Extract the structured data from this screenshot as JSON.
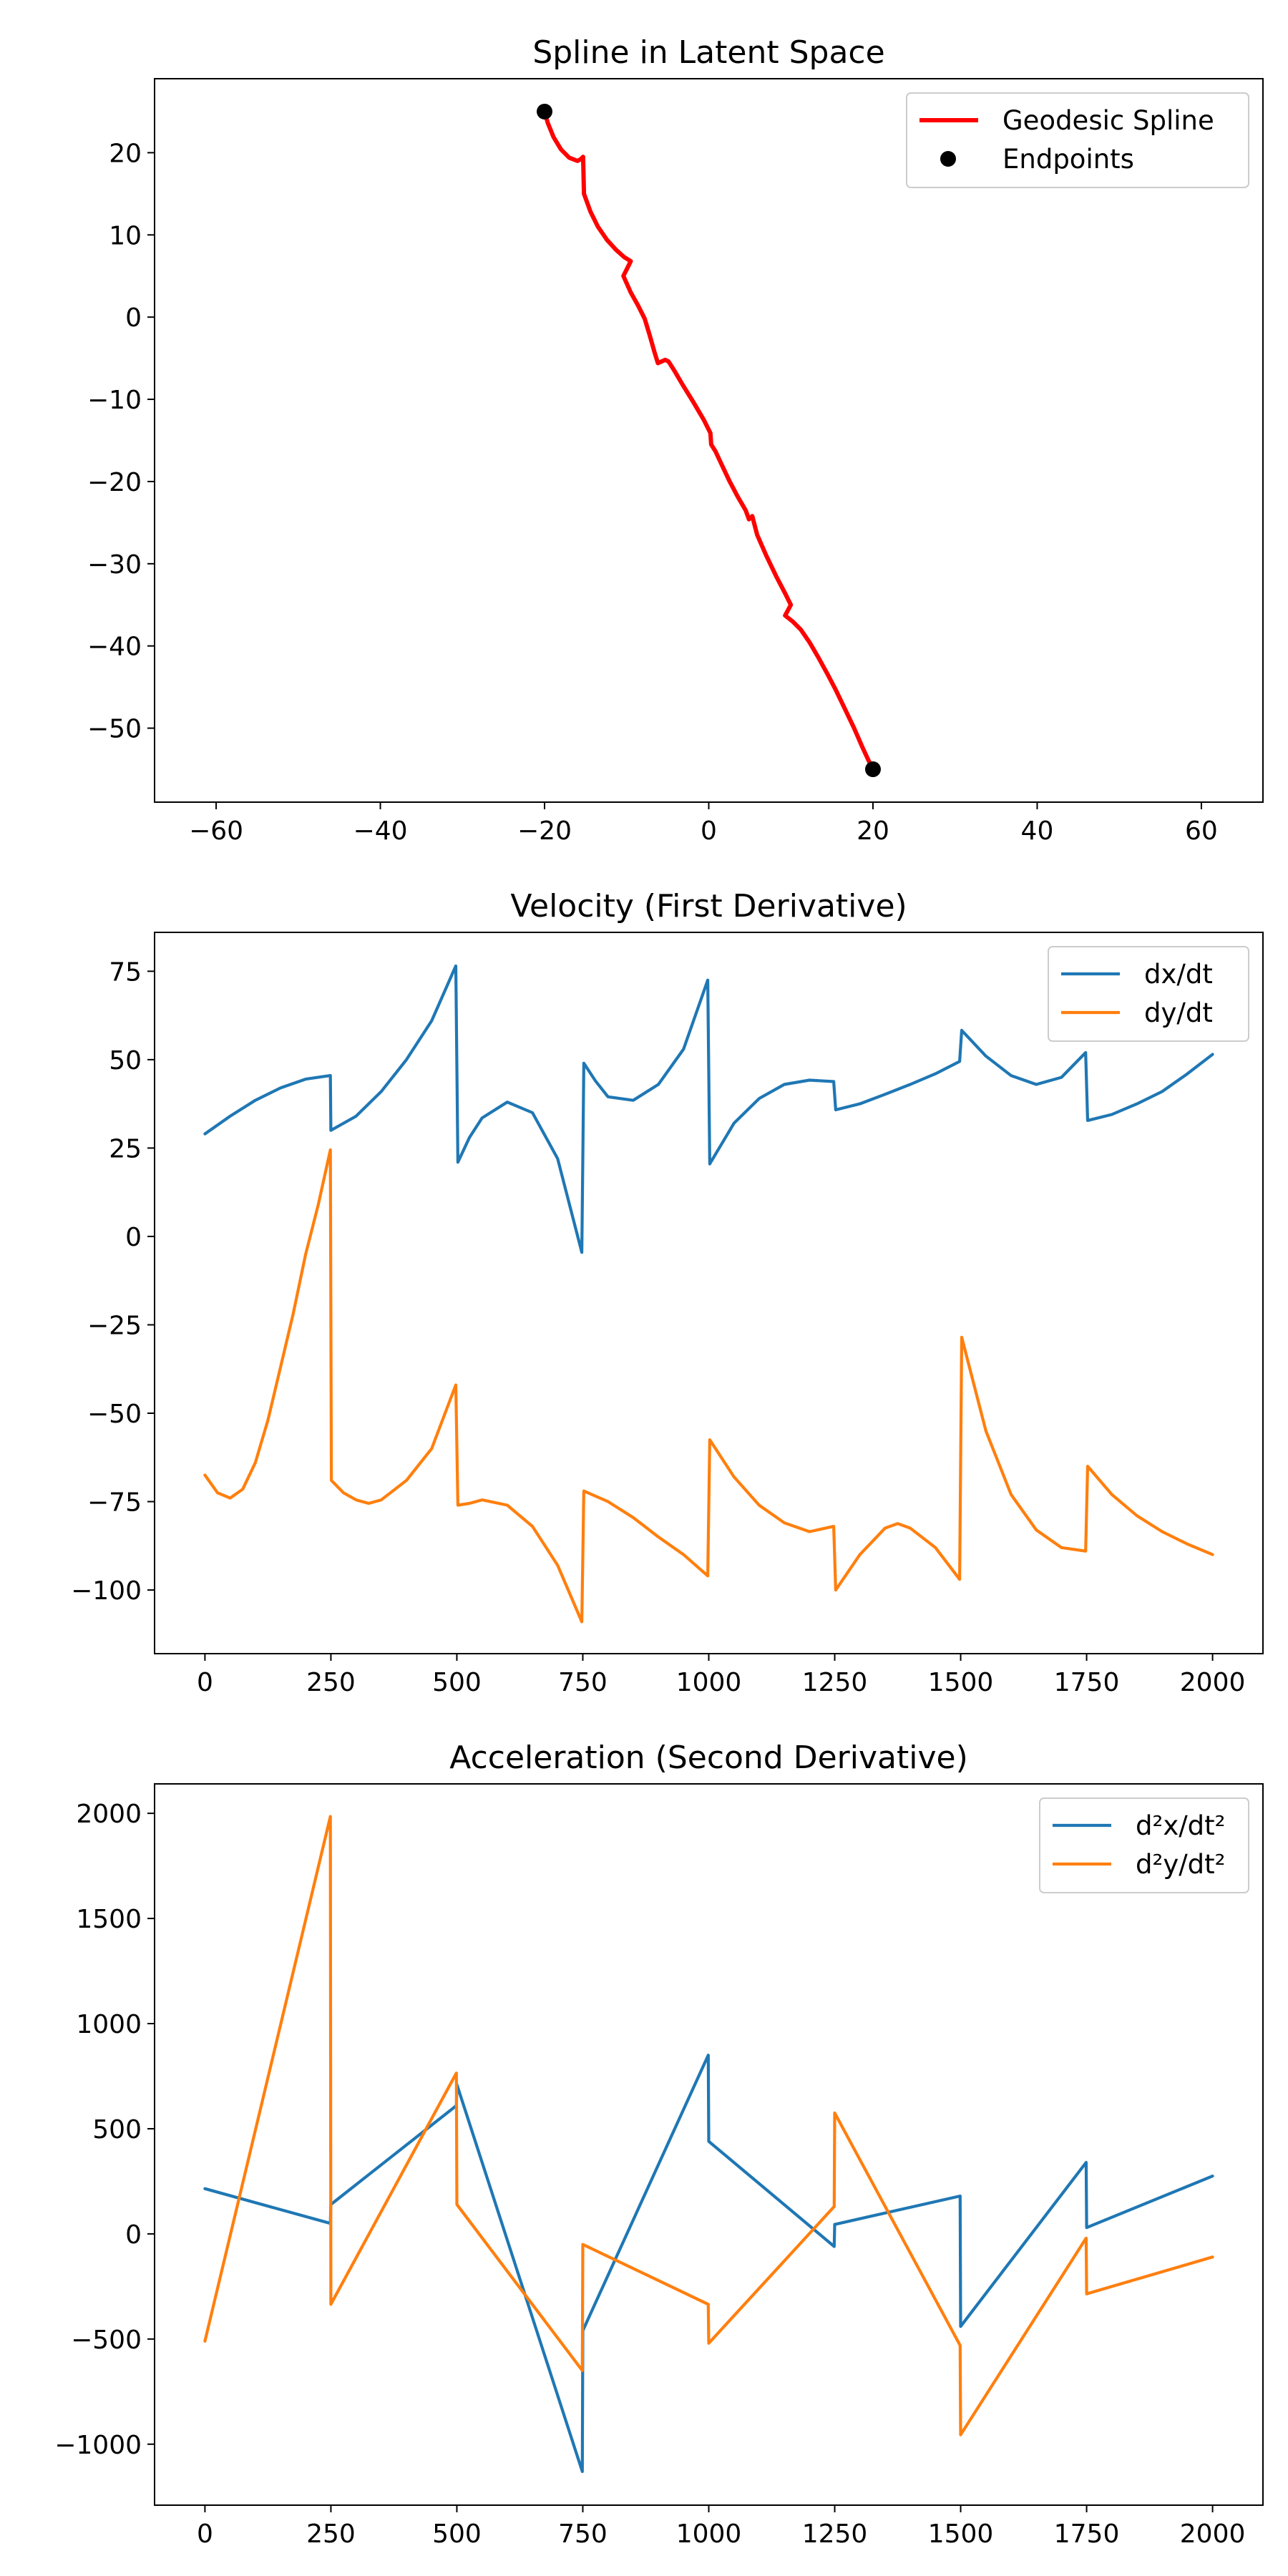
{
  "chart_data": [
    {
      "type": "line",
      "title": "Spline in Latent Space",
      "xlabel": "",
      "ylabel": "",
      "xlim": [
        -67.5,
        67.5
      ],
      "ylim": [
        -59,
        29
      ],
      "xticks": [
        -60,
        -40,
        -20,
        0,
        20,
        40,
        60
      ],
      "yticks": [
        -50,
        -40,
        -30,
        -20,
        -10,
        0,
        10,
        20
      ],
      "grid": false,
      "legend": "top-right",
      "series": [
        {
          "name": "Geodesic Spline",
          "kind": "line",
          "color": "#ff0000",
          "points": [
            [
              -20,
              25
            ],
            [
              -19.6,
              23.6
            ],
            [
              -18.9,
              21.9
            ],
            [
              -18.0,
              20.4
            ],
            [
              -17.0,
              19.4
            ],
            [
              -16.0,
              19.0
            ],
            [
              -15.6,
              19.2
            ],
            [
              -15.3,
              19.5
            ],
            [
              -15.2,
              15.0
            ],
            [
              -14.4,
              12.8
            ],
            [
              -13.5,
              11.0
            ],
            [
              -12.4,
              9.4
            ],
            [
              -11.3,
              8.2
            ],
            [
              -10.3,
              7.3
            ],
            [
              -9.5,
              6.8
            ],
            [
              -10.4,
              5.0
            ],
            [
              -9.5,
              3.0
            ],
            [
              -8.6,
              1.4
            ],
            [
              -7.8,
              -0.2
            ],
            [
              -7.2,
              -2.2
            ],
            [
              -6.6,
              -4.3
            ],
            [
              -6.2,
              -5.6
            ],
            [
              -5.3,
              -5.2
            ],
            [
              -4.9,
              -5.4
            ],
            [
              -4.2,
              -6.5
            ],
            [
              -3.2,
              -8.2
            ],
            [
              -1.9,
              -10.3
            ],
            [
              -0.6,
              -12.5
            ],
            [
              0.2,
              -14.1
            ],
            [
              0.3,
              -15.5
            ],
            [
              0.8,
              -16.3
            ],
            [
              1.6,
              -18.0
            ],
            [
              2.5,
              -19.9
            ],
            [
              3.5,
              -21.8
            ],
            [
              4.5,
              -23.5
            ],
            [
              4.9,
              -24.6
            ],
            [
              5.3,
              -24.2
            ],
            [
              5.9,
              -26.5
            ],
            [
              7.0,
              -29.0
            ],
            [
              8.2,
              -31.5
            ],
            [
              9.3,
              -33.6
            ],
            [
              10.0,
              -35.0
            ],
            [
              9.3,
              -36.3
            ],
            [
              10.2,
              -37.0
            ],
            [
              11.2,
              -38.0
            ],
            [
              12.3,
              -39.6
            ],
            [
              13.4,
              -41.5
            ],
            [
              14.5,
              -43.5
            ],
            [
              15.5,
              -45.4
            ],
            [
              16.6,
              -47.7
            ],
            [
              17.7,
              -50.0
            ],
            [
              18.7,
              -52.3
            ],
            [
              19.5,
              -54.0
            ],
            [
              20,
              -55
            ]
          ]
        },
        {
          "name": "Endpoints",
          "kind": "scatter",
          "color": "#000000",
          "points": [
            [
              -20,
              25
            ],
            [
              20,
              -55
            ]
          ]
        }
      ]
    },
    {
      "type": "line",
      "title": "Velocity (First Derivative)",
      "xlabel": "",
      "ylabel": "",
      "xlim": [
        -100,
        2100
      ],
      "ylim": [
        -118,
        86
      ],
      "xticks": [
        0,
        250,
        500,
        750,
        1000,
        1250,
        1500,
        1750,
        2000
      ],
      "yticks": [
        -100,
        -75,
        -50,
        -25,
        0,
        25,
        50,
        75
      ],
      "grid": false,
      "legend": "top-right",
      "series": [
        {
          "name": "dx/dt",
          "color": "#1f77b4",
          "points": [
            [
              0,
              29
            ],
            [
              50,
              34
            ],
            [
              100,
              38.5
            ],
            [
              150,
              42
            ],
            [
              200,
              44.5
            ],
            [
              249,
              45.5
            ],
            [
              250,
              30
            ],
            [
              300,
              34
            ],
            [
              350,
              41
            ],
            [
              400,
              50
            ],
            [
              450,
              61
            ],
            [
              498,
              76.5
            ],
            [
              502,
              21
            ],
            [
              525,
              28
            ],
            [
              550,
              33.5
            ],
            [
              600,
              38
            ],
            [
              650,
              35
            ],
            [
              700,
              22
            ],
            [
              748,
              -4.5
            ],
            [
              752,
              49
            ],
            [
              775,
              44
            ],
            [
              800,
              39.5
            ],
            [
              850,
              38.5
            ],
            [
              900,
              43
            ],
            [
              950,
              53
            ],
            [
              998,
              72.5
            ],
            [
              1002,
              20.5
            ],
            [
              1050,
              32
            ],
            [
              1100,
              39
            ],
            [
              1150,
              43
            ],
            [
              1200,
              44.2
            ],
            [
              1248,
              43.8
            ],
            [
              1252,
              35.8
            ],
            [
              1300,
              37.5
            ],
            [
              1350,
              40.2
            ],
            [
              1400,
              43
            ],
            [
              1450,
              46
            ],
            [
              1498,
              49.5
            ],
            [
              1502,
              58.3
            ],
            [
              1550,
              51
            ],
            [
              1600,
              45.5
            ],
            [
              1650,
              43
            ],
            [
              1700,
              45
            ],
            [
              1748,
              52
            ],
            [
              1752,
              32.8
            ],
            [
              1800,
              34.5
            ],
            [
              1850,
              37.5
            ],
            [
              1900,
              41
            ],
            [
              1950,
              46
            ],
            [
              2000,
              51.5
            ]
          ]
        },
        {
          "name": "dy/dt",
          "color": "#ff7f0e",
          "points": [
            [
              0,
              -67.5
            ],
            [
              25,
              -72.5
            ],
            [
              50,
              -74
            ],
            [
              75,
              -71.5
            ],
            [
              100,
              -64
            ],
            [
              125,
              -52
            ],
            [
              150,
              -37
            ],
            [
              175,
              -22
            ],
            [
              200,
              -5
            ],
            [
              225,
              9
            ],
            [
              249,
              24.5
            ],
            [
              251,
              -69
            ],
            [
              275,
              -72.5
            ],
            [
              300,
              -74.5
            ],
            [
              325,
              -75.5
            ],
            [
              350,
              -74.5
            ],
            [
              400,
              -69
            ],
            [
              450,
              -60
            ],
            [
              498,
              -42
            ],
            [
              502,
              -76
            ],
            [
              525,
              -75.5
            ],
            [
              550,
              -74.5
            ],
            [
              600,
              -76
            ],
            [
              650,
              -82
            ],
            [
              700,
              -93
            ],
            [
              748,
              -109
            ],
            [
              752,
              -72
            ],
            [
              800,
              -75
            ],
            [
              850,
              -79.5
            ],
            [
              900,
              -85
            ],
            [
              950,
              -90
            ],
            [
              998,
              -96
            ],
            [
              1002,
              -57.5
            ],
            [
              1050,
              -68
            ],
            [
              1100,
              -76
            ],
            [
              1150,
              -81
            ],
            [
              1200,
              -83.5
            ],
            [
              1248,
              -82
            ],
            [
              1252,
              -100
            ],
            [
              1300,
              -90
            ],
            [
              1350,
              -82.5
            ],
            [
              1375,
              -81.2
            ],
            [
              1400,
              -82.5
            ],
            [
              1450,
              -88
            ],
            [
              1498,
              -97
            ],
            [
              1502,
              -28.5
            ],
            [
              1550,
              -55
            ],
            [
              1600,
              -73
            ],
            [
              1650,
              -83
            ],
            [
              1700,
              -88
            ],
            [
              1748,
              -89
            ],
            [
              1752,
              -65
            ],
            [
              1800,
              -73
            ],
            [
              1850,
              -79
            ],
            [
              1900,
              -83.5
            ],
            [
              1950,
              -87
            ],
            [
              2000,
              -90
            ]
          ]
        }
      ]
    },
    {
      "type": "line",
      "title": "Acceleration (Second Derivative)",
      "xlabel": "",
      "ylabel": "",
      "xlim": [
        -100,
        2100
      ],
      "ylim": [
        -1290,
        2140
      ],
      "xticks": [
        0,
        250,
        500,
        750,
        1000,
        1250,
        1500,
        1750,
        2000
      ],
      "yticks": [
        -1000,
        -500,
        0,
        500,
        1000,
        1500,
        2000
      ],
      "grid": false,
      "legend": "top-right",
      "series": [
        {
          "name": "d²x/dt²",
          "color": "#1f77b4",
          "points": [
            [
              0,
              215
            ],
            [
              249,
              50
            ],
            [
              250,
              140
            ],
            [
              499,
              610
            ],
            [
              500,
              710
            ],
            [
              749,
              -1130
            ],
            [
              750,
              -460
            ],
            [
              999,
              850
            ],
            [
              1000,
              440
            ],
            [
              1249,
              -60
            ],
            [
              1250,
              45
            ],
            [
              1499,
              180
            ],
            [
              1500,
              -440
            ],
            [
              1749,
              340
            ],
            [
              1750,
              30
            ],
            [
              2000,
              275
            ]
          ]
        },
        {
          "name": "d²y/dt²",
          "color": "#ff7f0e",
          "points": [
            [
              0,
              -510
            ],
            [
              249,
              1985
            ],
            [
              250,
              -335
            ],
            [
              499,
              765
            ],
            [
              500,
              140
            ],
            [
              749,
              -650
            ],
            [
              750,
              -50
            ],
            [
              999,
              -335
            ],
            [
              1000,
              -520
            ],
            [
              1249,
              130
            ],
            [
              1250,
              575
            ],
            [
              1499,
              -530
            ],
            [
              1500,
              -955
            ],
            [
              1749,
              -20
            ],
            [
              1750,
              -285
            ],
            [
              2000,
              -110
            ]
          ]
        }
      ]
    }
  ]
}
